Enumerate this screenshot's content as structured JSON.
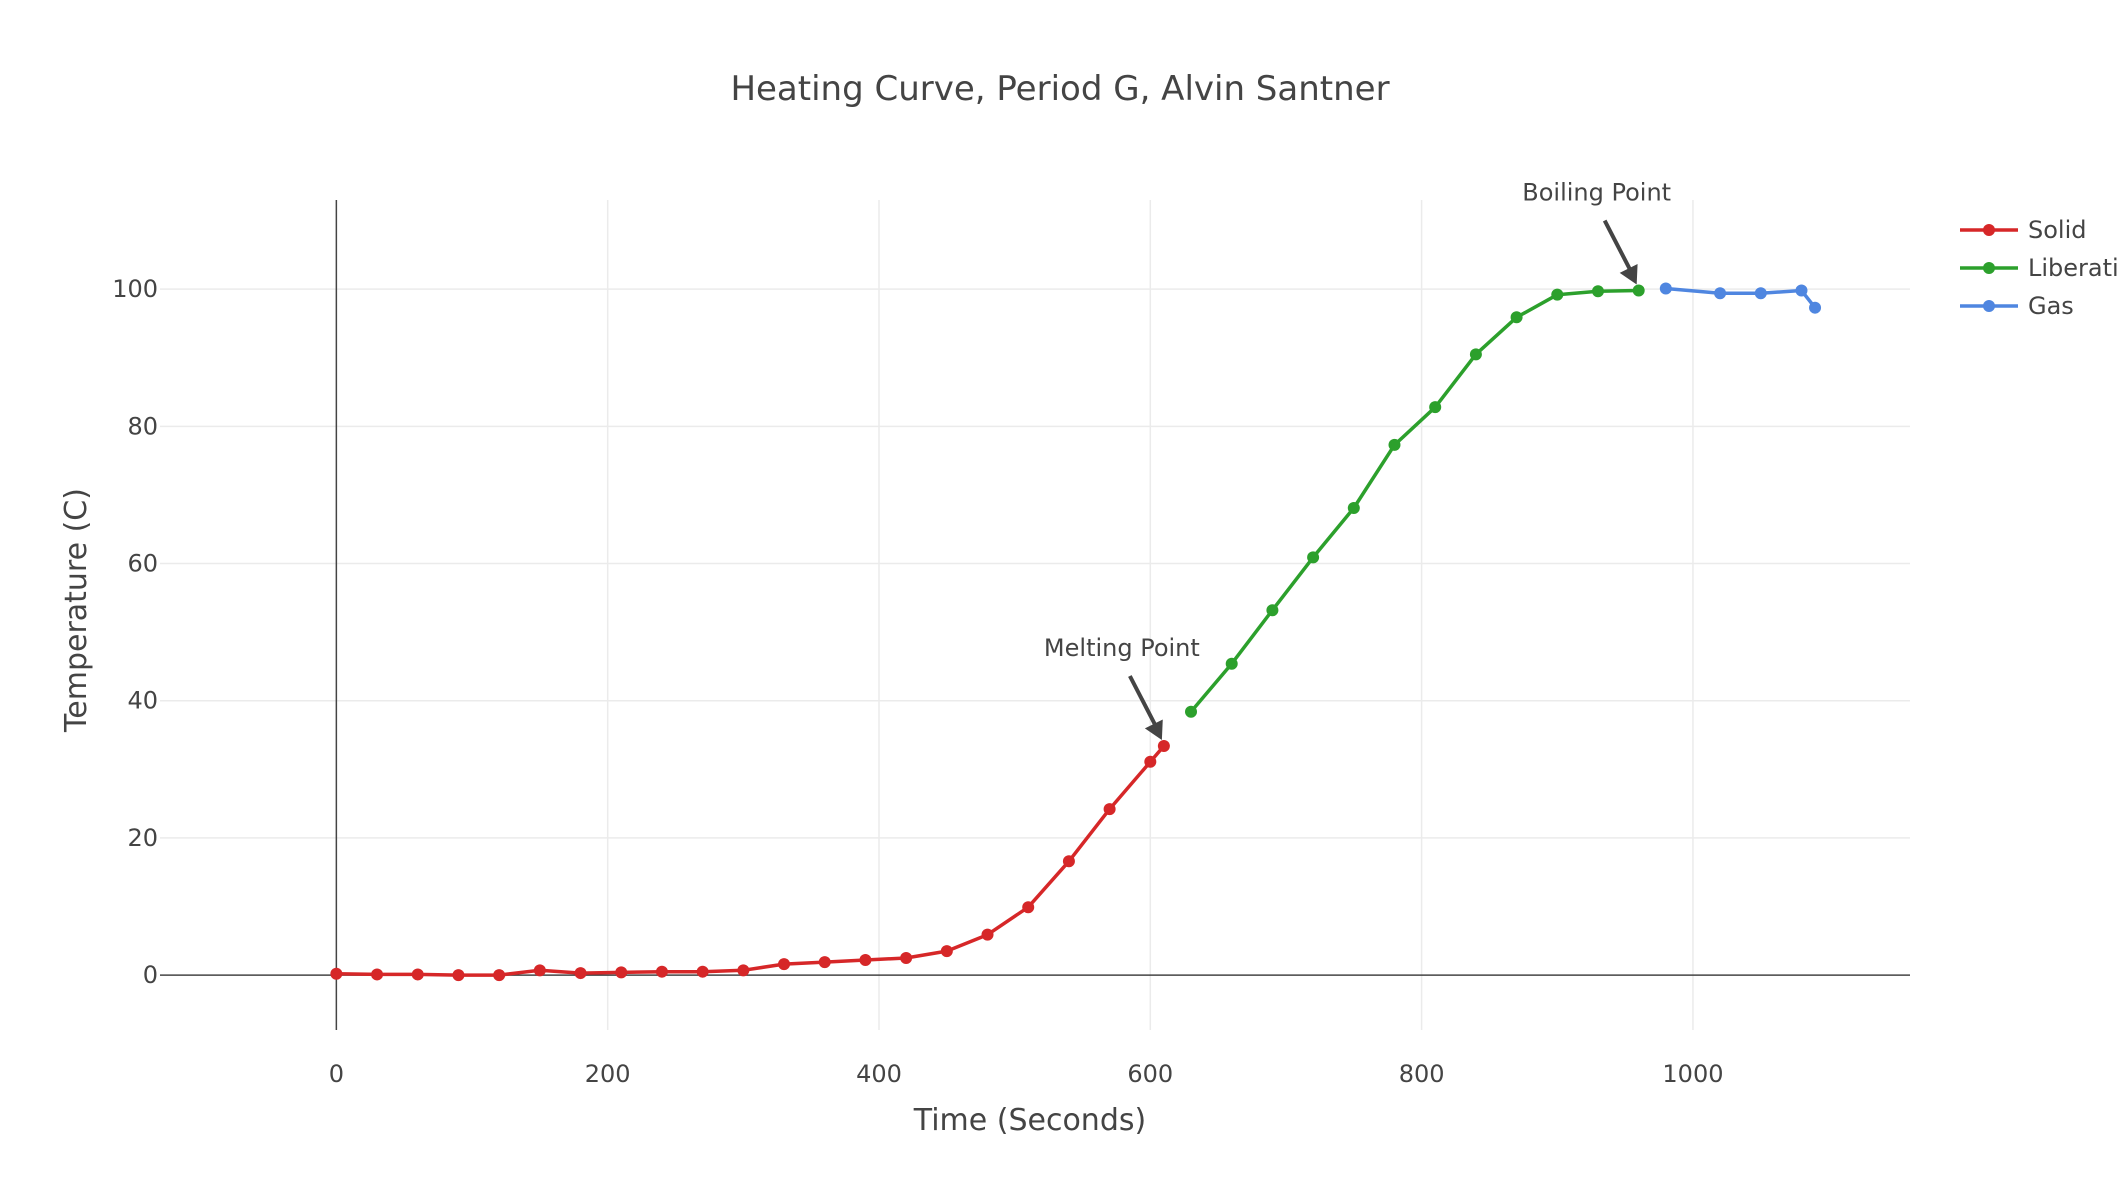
{
  "chart_data": {
    "type": "line",
    "title": "Heating Curve, Period G, Alvin Santner",
    "xlabel": "Time (Seconds)",
    "ylabel": "Temperature (C)",
    "xlim": [
      -130,
      1160
    ],
    "ylim": [
      -8,
      113
    ],
    "x_ticks": [
      0,
      200,
      400,
      600,
      800,
      1000
    ],
    "y_ticks": [
      0,
      20,
      40,
      60,
      80,
      100
    ],
    "grid": true,
    "legend_position": "top-right",
    "series": [
      {
        "name": "Solid",
        "color": "#d62728",
        "x": [
          0,
          30,
          60,
          90,
          120,
          150,
          180,
          210,
          240,
          270,
          300,
          330,
          360,
          390,
          420,
          450,
          480,
          510,
          540,
          570,
          600,
          610
        ],
        "y": [
          0.2,
          0.1,
          0.1,
          0.0,
          0.0,
          0.7,
          0.3,
          0.4,
          0.5,
          0.5,
          0.7,
          1.6,
          1.9,
          2.2,
          2.5,
          3.5,
          5.9,
          9.9,
          16.6,
          24.2,
          31.1,
          33.4
        ]
      },
      {
        "name": "Liberation",
        "color": "#2ca02c",
        "x": [
          630,
          660,
          690,
          720,
          750,
          780,
          810,
          840,
          870,
          900,
          930,
          960
        ],
        "y": [
          38.4,
          45.4,
          53.2,
          60.9,
          68.1,
          77.3,
          82.8,
          90.5,
          95.9,
          99.2,
          99.7,
          99.8
        ]
      },
      {
        "name": "Gas",
        "color": "#4f86e0",
        "x": [
          980,
          1020,
          1050,
          1080,
          1090
        ],
        "y": [
          100.1,
          99.4,
          99.4,
          99.8,
          97.3
        ]
      }
    ],
    "annotations": [
      {
        "text": "Melting Point",
        "x": 610,
        "y": 33.4
      },
      {
        "text": "Boiling Point",
        "x": 960,
        "y": 99.8
      }
    ]
  }
}
